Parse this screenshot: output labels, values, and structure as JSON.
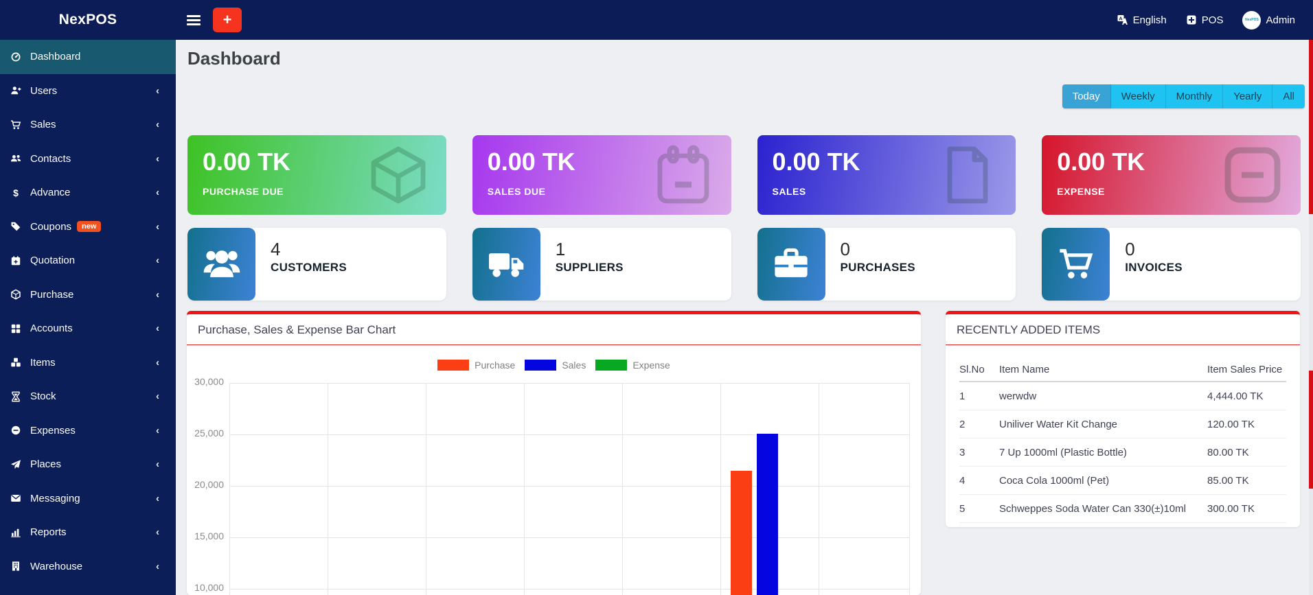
{
  "navbar": {
    "brand": "NexPOS",
    "language_label": "English",
    "pos_label": "POS",
    "user_label": "Admin",
    "add_button": "+"
  },
  "sidebar": {
    "items": [
      {
        "label": "Dashboard",
        "icon": "gauge-icon",
        "active": true,
        "chevron": false,
        "badge": ""
      },
      {
        "label": "Users",
        "icon": "user-plus-icon",
        "active": false,
        "chevron": true,
        "badge": ""
      },
      {
        "label": "Sales",
        "icon": "cart-icon",
        "active": false,
        "chevron": true,
        "badge": ""
      },
      {
        "label": "Contacts",
        "icon": "users-icon",
        "active": false,
        "chevron": true,
        "badge": ""
      },
      {
        "label": "Advance",
        "icon": "dollar-icon",
        "active": false,
        "chevron": true,
        "badge": ""
      },
      {
        "label": "Coupons",
        "icon": "tag-icon",
        "active": false,
        "chevron": true,
        "badge": "new"
      },
      {
        "label": "Quotation",
        "icon": "calendar-plus-icon",
        "active": false,
        "chevron": true,
        "badge": ""
      },
      {
        "label": "Purchase",
        "icon": "cube-icon",
        "active": false,
        "chevron": true,
        "badge": ""
      },
      {
        "label": "Accounts",
        "icon": "grid-icon",
        "active": false,
        "chevron": true,
        "badge": ""
      },
      {
        "label": "Items",
        "icon": "cubes-icon",
        "active": false,
        "chevron": true,
        "badge": ""
      },
      {
        "label": "Stock",
        "icon": "hourglass-icon",
        "active": false,
        "chevron": true,
        "badge": ""
      },
      {
        "label": "Expenses",
        "icon": "minus-circle-icon",
        "active": false,
        "chevron": true,
        "badge": ""
      },
      {
        "label": "Places",
        "icon": "paper-plane-icon",
        "active": false,
        "chevron": true,
        "badge": ""
      },
      {
        "label": "Messaging",
        "icon": "envelope-icon",
        "active": false,
        "chevron": true,
        "badge": ""
      },
      {
        "label": "Reports",
        "icon": "bar-chart-icon",
        "active": false,
        "chevron": true,
        "badge": ""
      },
      {
        "label": "Warehouse",
        "icon": "building-icon",
        "active": false,
        "chevron": true,
        "badge": ""
      }
    ]
  },
  "page": {
    "title": "Dashboard"
  },
  "filters": {
    "options": [
      "Today",
      "Weekly",
      "Monthly",
      "Yearly",
      "All"
    ],
    "active": "Today"
  },
  "stat_cards": [
    {
      "amount": "0.00 TK",
      "label": "PURCHASE DUE",
      "icon": "cube-outline-icon",
      "gradient_from": "#3ec224",
      "gradient_to": "#7cdcc8"
    },
    {
      "amount": "0.00 TK",
      "label": "SALES DUE",
      "icon": "calendar-outline-icon",
      "gradient_from": "#a637ee",
      "gradient_to": "#daabe9"
    },
    {
      "amount": "0.00 TK",
      "label": "SALES",
      "icon": "file-outline-icon",
      "gradient_from": "#2b22cf",
      "gradient_to": "#9b99e9"
    },
    {
      "amount": "0.00 TK",
      "label": "EXPENSE",
      "icon": "minus-square-outline-icon",
      "gradient_from": "#d5152b",
      "gradient_to": "#e2abdf"
    }
  ],
  "count_cards": [
    {
      "value": "4",
      "label": "CUSTOMERS",
      "icon": "people-group-icon"
    },
    {
      "value": "1",
      "label": "SUPPLIERS",
      "icon": "truck-icon"
    },
    {
      "value": "0",
      "label": "PURCHASES",
      "icon": "briefcase-icon"
    },
    {
      "value": "0",
      "label": "INVOICES",
      "icon": "cart-icon"
    }
  ],
  "chart_panel": {
    "title": "Purchase, Sales & Expense Bar Chart"
  },
  "chart_data": {
    "type": "bar",
    "title": "Purchase, Sales & Expense Bar Chart",
    "categories": [
      ""
    ],
    "series": [
      {
        "name": "Purchase",
        "color": "#fc3e14",
        "values": [
          21500
        ]
      },
      {
        "name": "Sales",
        "color": "#0505e0",
        "values": [
          25100
        ]
      },
      {
        "name": "Expense",
        "color": "#09a823",
        "values": [
          0
        ]
      }
    ],
    "ylim": [
      0,
      30000
    ],
    "tick_step": 5000,
    "visible_y_ticks": [
      "30,000",
      "25,000",
      "20,000",
      "15,000",
      "10,000"
    ],
    "grid": true,
    "legend_position": "top-center",
    "note": "plot bottom cut off by viewport"
  },
  "recent_items": {
    "title": "RECENTLY ADDED ITEMS",
    "columns": [
      "Sl.No",
      "Item Name",
      "Item Sales Price"
    ],
    "rows": [
      {
        "sl": "1",
        "name": "werwdw",
        "price": "4,444.00 TK"
      },
      {
        "sl": "2",
        "name": "Uniliver Water Kit Change",
        "price": "120.00 TK"
      },
      {
        "sl": "3",
        "name": "7 Up 1000ml (Plastic Bottle)",
        "price": "80.00 TK"
      },
      {
        "sl": "4",
        "name": "Coca Cola 1000ml (Pet)",
        "price": "85.00 TK"
      },
      {
        "sl": "5",
        "name": "Schweppes Soda Water Can 330(±)10ml",
        "price": "300.00 TK"
      }
    ]
  },
  "colors": {
    "navbar_bg": "#0b1c56",
    "sidebar_bg": "#0c1e58",
    "sidebar_active_bg": "#19596f",
    "accent_red": "#f5331f",
    "panel_border_red": "#ed1515",
    "filter_bg": "#1ec3f2",
    "filter_active_bg": "#3aa3d6",
    "count_icon_gradient_from": "#13708d",
    "count_icon_gradient_to": "#3d82d6",
    "main_bg": "#edeff3",
    "scrollbar_thumb": "#d80f16"
  }
}
